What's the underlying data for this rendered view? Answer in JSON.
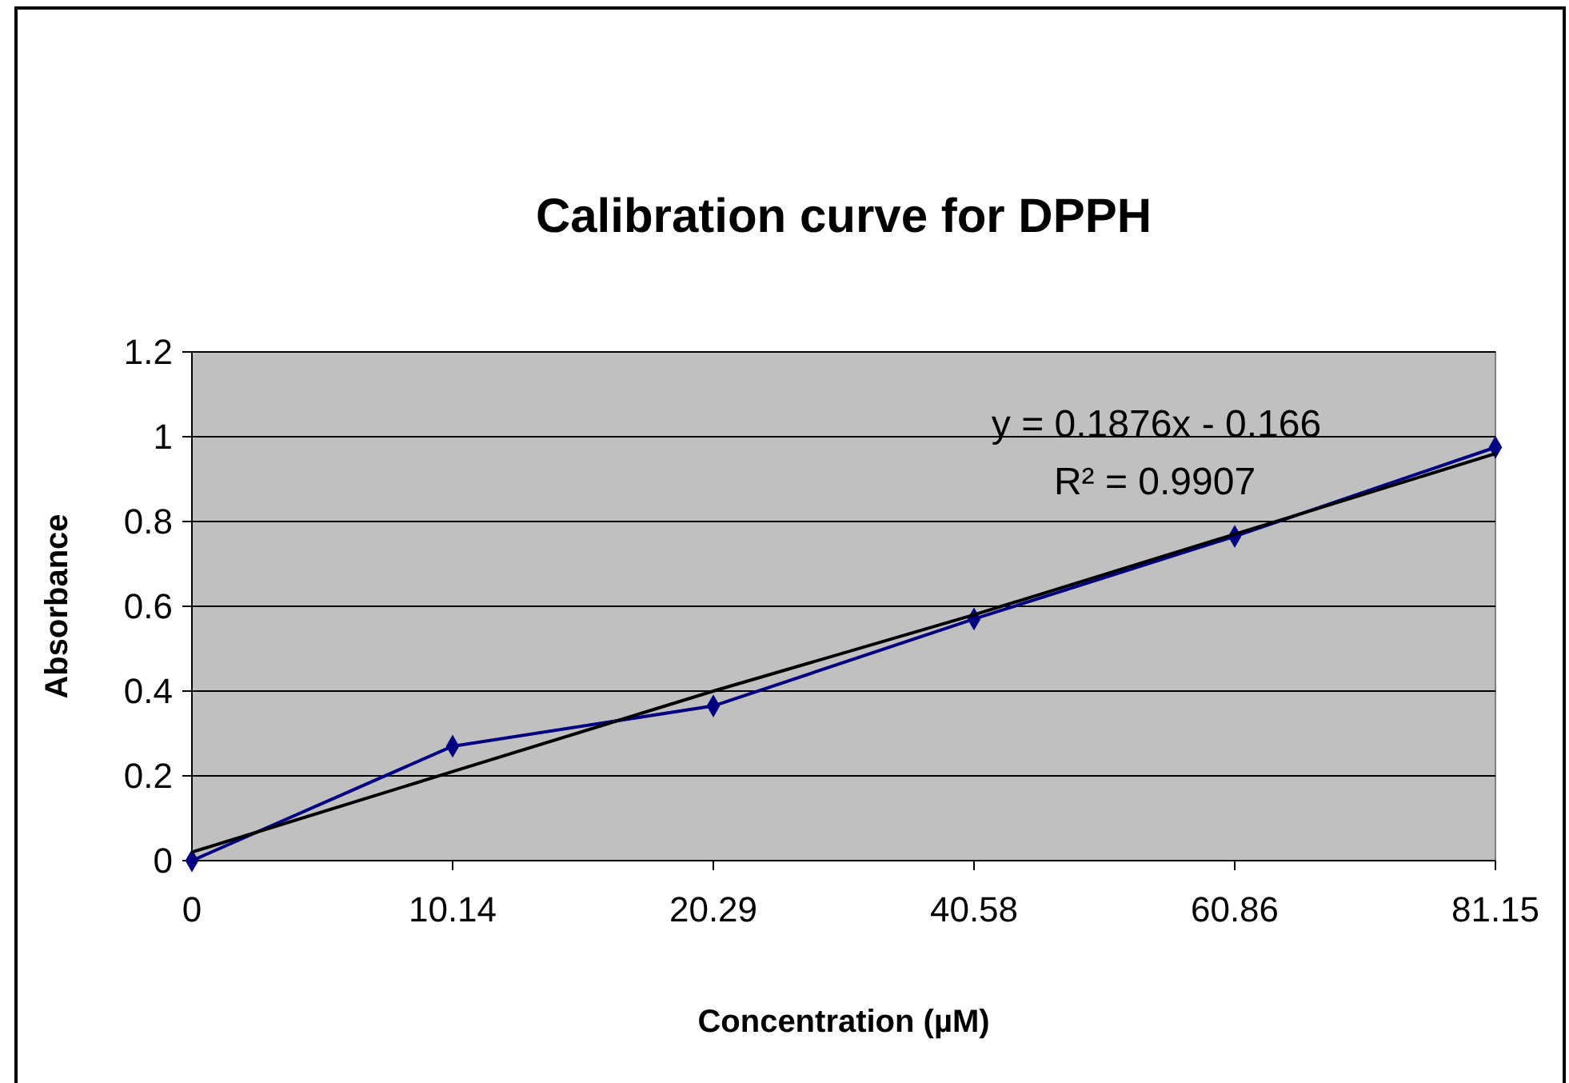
{
  "chart_data": {
    "type": "line",
    "title": "Calibration curve for DPPH",
    "xlabel": "Concentration (µM)",
    "ylabel": "Absorbance",
    "categories": [
      "0",
      "10.14",
      "20.29",
      "40.58",
      "60.86",
      "81.15"
    ],
    "series": [
      {
        "color": "#000080",
        "values": [
          0,
          0.27,
          0.365,
          0.57,
          0.765,
          0.975
        ]
      },
      {
        "type": "line",
        "color": "#000000",
        "marker": "none",
        "values": [
          0.02,
          0.21,
          0.4,
          0.58,
          0.77,
          0.96
        ]
      }
    ],
    "ylim": [
      0,
      1.2
    ],
    "yticks": [
      0,
      0.2,
      0.4,
      0.6,
      0.8,
      1,
      1.2
    ],
    "grid": "y",
    "marker": "diamond",
    "annotations": [
      "y = 0.1876x - 0.166",
      "R² = 0.9907"
    ]
  }
}
